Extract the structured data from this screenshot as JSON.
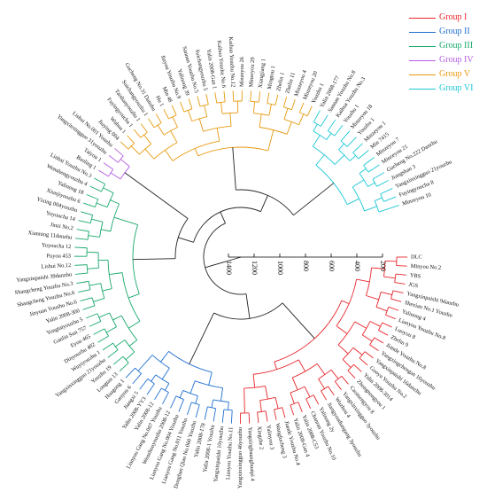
{
  "groups": [
    {
      "label": "Group I",
      "color": "#e8262b"
    },
    {
      "label": "Group II",
      "color": "#1f6fd1"
    },
    {
      "label": "Group III",
      "color": "#17a86b"
    },
    {
      "label": "Group IV",
      "color": "#b45ee0"
    },
    {
      "label": "Group V",
      "color": "#e89a10"
    },
    {
      "label": "Group VI",
      "color": "#1cc7d6"
    }
  ],
  "scale": {
    "ticks": [
      "1400",
      "1200",
      "1000",
      "800",
      "600",
      "400",
      "200"
    ]
  },
  "leaves": [
    {
      "label": "DLC",
      "group": 0
    },
    {
      "label": "Minyou No.2",
      "group": 0
    },
    {
      "label": "YBS",
      "group": 0
    },
    {
      "label": "JGS",
      "group": 0
    },
    {
      "label": "Yangxinpaishi 9danzhu",
      "group": 0
    },
    {
      "label": "Shexian No.1 Youzhu",
      "group": 0
    },
    {
      "label": "Yalinong 4",
      "group": 0
    },
    {
      "label": "Lianyou Youzhu No.8",
      "group": 0
    },
    {
      "label": "Luoyou 8",
      "group": 0
    },
    {
      "label": "Zhelin 9",
      "group": 0
    },
    {
      "label": "Jiande Youzhu No.8",
      "group": 0
    },
    {
      "label": "Yangxingchengan 16youzhu",
      "group": 0
    },
    {
      "label": "Yangxinpaishi 16danzhu",
      "group": 0
    },
    {
      "label": "Guoyu Youzhu No.2",
      "group": 0
    },
    {
      "label": "Yalin 2008-3014",
      "group": 0
    },
    {
      "label": "Zhongnongyou 1",
      "group": 0
    },
    {
      "label": "Caomengyou 8",
      "group": 0
    },
    {
      "label": "Yangxinxingguo 3youzhu",
      "group": 0
    },
    {
      "label": "Wuzhou 4",
      "group": 0
    },
    {
      "label": "Jiangyoudiangang 3youzhu",
      "group": 0
    },
    {
      "label": "Yalinong 2y",
      "group": 0
    },
    {
      "label": "Chanran Youzhu No.10",
      "group": 0
    },
    {
      "label": "Yalin 2008-C53",
      "group": 0
    },
    {
      "label": "Yalin 2008-Gan 4",
      "group": 0
    },
    {
      "label": "Jiande Youzhu No.4",
      "group": 0
    },
    {
      "label": "Wangfucheng 3",
      "group": 0
    },
    {
      "label": "Yalinyou 3",
      "group": 0
    },
    {
      "label": "Xingzhe 2",
      "group": 0
    },
    {
      "label": "Yangxinghuanghuaipi 4",
      "group": 0
    },
    {
      "label": "Yangxinxingguo 46youzhu",
      "group": 0
    },
    {
      "label": "Lianyou Youzhu No.11",
      "group": 1
    },
    {
      "label": "Yangxinpaishi 10youzhu",
      "group": 1
    },
    {
      "label": "Yalin 2008-1 Youzhu",
      "group": 1
    },
    {
      "label": "Yalin 2008-178",
      "group": 1
    },
    {
      "label": "Donghan Qiao No.060 Youzhu",
      "group": 1
    },
    {
      "label": "Lianyou Gang No.011 Youzhu",
      "group": 1
    },
    {
      "label": "Lianyou Gang No.004 Youzhu",
      "group": 1
    },
    {
      "label": "Wenzhouyouzhu 2008-12",
      "group": 1
    },
    {
      "label": "Lianyou Gang No.007 Youzhu",
      "group": 1
    },
    {
      "label": "Yalin 2008-12",
      "group": 1
    },
    {
      "label": "Yalin 2008-YY3",
      "group": 1
    },
    {
      "label": "Jiangxi 5",
      "group": 1
    },
    {
      "label": "Ganyou 6",
      "group": 1
    },
    {
      "label": "Huagong 1",
      "group": 1
    },
    {
      "label": "Longtan 13",
      "group": 2
    },
    {
      "label": "Youzhu 19",
      "group": 2
    },
    {
      "label": "Yangxinxingguo 21youzhu",
      "group": 2
    },
    {
      "label": "Wuyiyouzhu 1",
      "group": 2
    },
    {
      "label": "Dinyouzhu 402",
      "group": 2
    },
    {
      "label": "Eyou 465",
      "group": 2
    },
    {
      "label": "Ganlin Sun 757",
      "group": 2
    },
    {
      "label": "Yongtaiyouzhu 5",
      "group": 2
    },
    {
      "label": "Yalin 2008-300",
      "group": 2
    },
    {
      "label": "Jinyuan Youzhu No.6",
      "group": 2
    },
    {
      "label": "Shangcheng Youzhu No.6",
      "group": 2
    },
    {
      "label": "Shangcheng Youzhu No.3",
      "group": 2
    },
    {
      "label": "Yangxinpaishi 39danzhu",
      "group": 2
    },
    {
      "label": "Lishui No.12",
      "group": 2
    },
    {
      "label": "Puyou 453",
      "group": 2
    },
    {
      "label": "Yuyoucha 12",
      "group": 2
    },
    {
      "label": "Xianning 11danzhu",
      "group": 2
    },
    {
      "label": "Jinzi No.2",
      "group": 2
    },
    {
      "label": "Yuyoucha 14",
      "group": 2
    },
    {
      "label": "Yixing 004youzhu",
      "group": 2
    },
    {
      "label": "Xiunjiyouzhu 6",
      "group": 2
    },
    {
      "label": "Yalinong 18",
      "group": 2
    },
    {
      "label": "Wenshengyouzhu 4",
      "group": 2
    },
    {
      "label": "Linhai Youzhu No.3",
      "group": 2
    },
    {
      "label": "Baoling 1",
      "group": 3
    },
    {
      "label": "Taiyou 1",
      "group": 3
    },
    {
      "label": "Yangxinxingguo 31youzhu",
      "group": 3
    },
    {
      "label": "Lishui No.001 Youzhu",
      "group": 3
    },
    {
      "label": "Jiuying 004",
      "group": 4
    },
    {
      "label": "Wuhua 1",
      "group": 4
    },
    {
      "label": "Fuyingyoucha 1",
      "group": 4
    },
    {
      "label": "Taishanyouzhu 1",
      "group": 4
    },
    {
      "label": "Suichangyouzhu 1",
      "group": 4
    },
    {
      "label": "Gucheng No.31 Danzhu",
      "group": 4
    },
    {
      "label": "Hu 1",
      "group": 4
    },
    {
      "label": "Min 48",
      "group": 4
    },
    {
      "label": "Jinyou Youzhu No.9",
      "group": 4
    },
    {
      "label": "Yalinong 39",
      "group": 4
    },
    {
      "label": "Sannan Youzhu No.5",
      "group": 4
    },
    {
      "label": "Suichangyouzhu 5",
      "group": 4
    },
    {
      "label": "Yalin 2008-Gan 1",
      "group": 4
    },
    {
      "label": "Kaihua Youzhu No.6",
      "group": 4
    },
    {
      "label": "Kaihua Youzhu No.12",
      "group": 4
    },
    {
      "label": "Minzeyou 26",
      "group": 4
    },
    {
      "label": "Minzeyou 29",
      "group": 4
    },
    {
      "label": "Xiangjiang 1",
      "group": 4
    },
    {
      "label": "Mingtou 1",
      "group": 4
    },
    {
      "label": "Zhelin 1",
      "group": 4
    },
    {
      "label": "Zhelin 11",
      "group": 4
    },
    {
      "label": "Minzeyou 4",
      "group": 4
    },
    {
      "label": "Minzeyou 20",
      "group": 4
    },
    {
      "label": "Youzhu 1",
      "group": 4
    },
    {
      "label": "Yalin 2008-177",
      "group": 5
    },
    {
      "label": "Sannan Youzhu No.8",
      "group": 5
    },
    {
      "label": "Kaihua Youzhu No.3",
      "group": 5
    },
    {
      "label": "Youzhu 1",
      "group": 5
    },
    {
      "label": "Minzeyou 18",
      "group": 5
    },
    {
      "label": "Youzhu 1",
      "group": 5
    },
    {
      "label": "Minzeyou 1",
      "group": 5
    },
    {
      "label": "Min 7415",
      "group": 5
    },
    {
      "label": "Minzeyou 7",
      "group": 5
    },
    {
      "label": "Minzeyou 21",
      "group": 5
    },
    {
      "label": "Gucheng No.222 Danzhu",
      "group": 5
    },
    {
      "label": "Jiangshan 3",
      "group": 5
    },
    {
      "label": "Yangxinxingguo 21youzhu",
      "group": 5
    },
    {
      "label": "Fuyingyoucha 8",
      "group": 5
    },
    {
      "label": "Minzeyou 10",
      "group": 5
    }
  ]
}
